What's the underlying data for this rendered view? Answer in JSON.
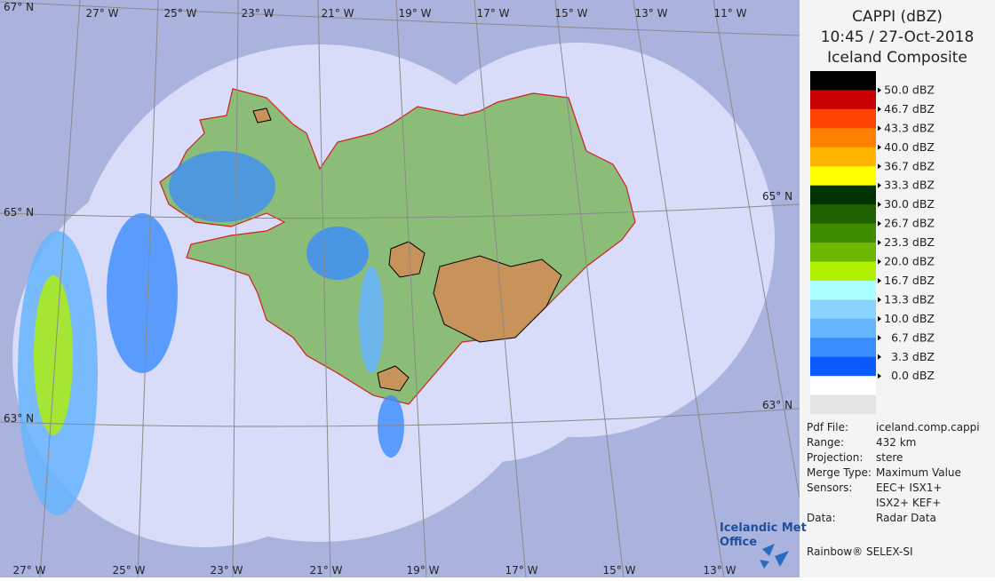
{
  "map": {
    "lon_labels_top": [
      "27° W",
      "25° W",
      "23° W",
      "21° W",
      "19° W",
      "17° W",
      "15° W",
      "13° W",
      "11° W"
    ],
    "lon_labels_bottom": [
      "27° W",
      "25° W",
      "23° W",
      "21° W",
      "19° W",
      "17° W",
      "15° W",
      "13° W"
    ],
    "lat_labels_left": [
      "67° N",
      "65° N",
      "63° N"
    ],
    "lat_labels_right": [
      "65° N",
      "63° N"
    ]
  },
  "panel": {
    "title": [
      "CAPPI (dBZ)",
      "10:45 / 27-Oct-2018",
      "Iceland Composite"
    ],
    "legend": {
      "colors": [
        "#000000",
        "#c80000",
        "#ff4400",
        "#ff8000",
        "#ffb400",
        "#ffff00",
        "#003300",
        "#1f6000",
        "#3f8c00",
        "#6cb800",
        "#b0f000",
        "#aaffff",
        "#88d4ff",
        "#66b4ff",
        "#3a8cff",
        "#0a5aff"
      ],
      "labels": [
        "50.0 dBZ",
        "46.7 dBZ",
        "43.3 dBZ",
        "40.0 dBZ",
        "36.7 dBZ",
        "33.3 dBZ",
        "30.0 dBZ",
        "26.7 dBZ",
        "23.3 dBZ",
        "20.0 dBZ",
        "16.7 dBZ",
        "13.3 dBZ",
        "10.0 dBZ",
        "6.7 dBZ",
        "3.3 dBZ",
        "0.0 dBZ"
      ]
    },
    "info": [
      {
        "key": "Pdf File:",
        "value": [
          "iceland.comp.cappi"
        ]
      },
      {
        "key": "Range:",
        "value": [
          "432 km"
        ]
      },
      {
        "key": "Projection:",
        "value": [
          "stere"
        ]
      },
      {
        "key": "Merge Type:",
        "value": [
          "Maximum Value"
        ]
      },
      {
        "key": "Sensors:",
        "value": [
          "EEC+ ISX1+",
          "ISX2+ KEF+"
        ]
      },
      {
        "key": "Data:",
        "value": [
          "Radar Data"
        ]
      }
    ],
    "footer": "Rainbow® SELEX-SI"
  },
  "logo": [
    "Icelandic Met",
    "Office"
  ]
}
